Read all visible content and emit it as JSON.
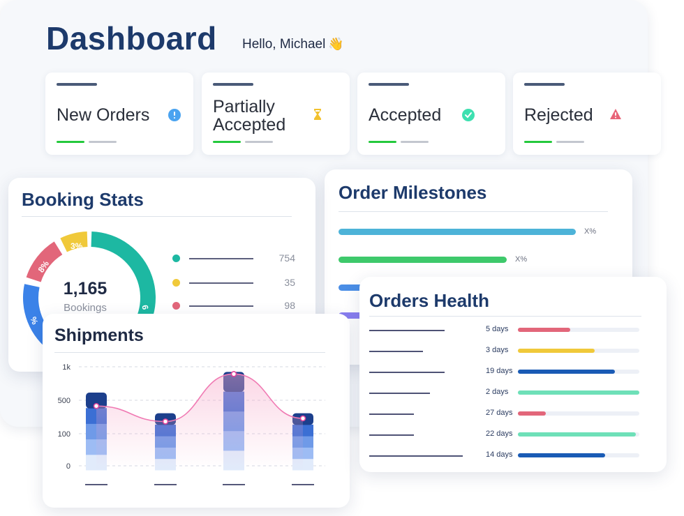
{
  "header": {
    "title": "Dashboard",
    "greeting": "Hello, Michael",
    "greeting_icon": "waving-hand-icon"
  },
  "status_cards": [
    {
      "label": "New Orders",
      "icon": "info-icon",
      "color": "#4aa3f0"
    },
    {
      "label_line1": "Partially",
      "label_line2": "Accepted",
      "icon": "hourglass-icon",
      "color": "#f2c12e"
    },
    {
      "label": "Accepted",
      "icon": "check-circle-icon",
      "color": "#3ee0b0"
    },
    {
      "label": "Rejected",
      "icon": "warning-icon",
      "color": "#e86478"
    }
  ],
  "booking_stats": {
    "title": "Booking Stats",
    "total": "1,165",
    "total_label": "Bookings",
    "segments": [
      {
        "label": "3%",
        "color": "#f0c93a"
      },
      {
        "label": "8%",
        "color": "#e2667a"
      },
      {
        "label": "%",
        "color": "#3b82e8"
      },
      {
        "label": "6",
        "color": "#1db8a2"
      }
    ],
    "legend": [
      {
        "color": "#1db8a2",
        "value": "754"
      },
      {
        "color": "#f0c93a",
        "value": "35"
      },
      {
        "color": "#e2667a",
        "value": "98"
      }
    ]
  },
  "order_milestones": {
    "title": "Order Milestones",
    "bars": [
      {
        "color": "#4db3d8",
        "pct_label": "X%",
        "fraction": 1.0
      },
      {
        "color": "#3ec96b",
        "pct_label": "X%",
        "fraction": 0.71
      },
      {
        "color": "#4a8ee6",
        "pct_label": "",
        "fraction": 0.2
      },
      {
        "color": "#8a7ff0",
        "pct_label": "%",
        "fraction": 0.2
      }
    ]
  },
  "orders_health": {
    "title": "Orders Health",
    "rows": [
      {
        "days": "5 days",
        "color": "#e2667a",
        "fraction": 0.43
      },
      {
        "days": "3 days",
        "color": "#f0c93a",
        "fraction": 0.63
      },
      {
        "days": "19 days",
        "color": "#1a5bb5",
        "fraction": 0.8
      },
      {
        "days": "2 days",
        "color": "#6ee0b8",
        "fraction": 1.0
      },
      {
        "days": "27 days",
        "color": "#e2667a",
        "fraction": 0.23
      },
      {
        "days": "22 days",
        "color": "#6ee0b8",
        "fraction": 0.97
      },
      {
        "days": "14 days",
        "color": "#1a5bb5",
        "fraction": 0.72
      }
    ]
  },
  "chart_data": {
    "type": "bar",
    "title": "Shipments",
    "y_ticks": [
      "1k",
      "500",
      "100",
      "0"
    ],
    "categories": [
      "",
      "",
      "",
      ""
    ],
    "values": [
      750,
      550,
      950,
      550
    ],
    "line_values": [
      620,
      470,
      930,
      500
    ],
    "ylim": [
      0,
      1000
    ],
    "grid": true
  }
}
